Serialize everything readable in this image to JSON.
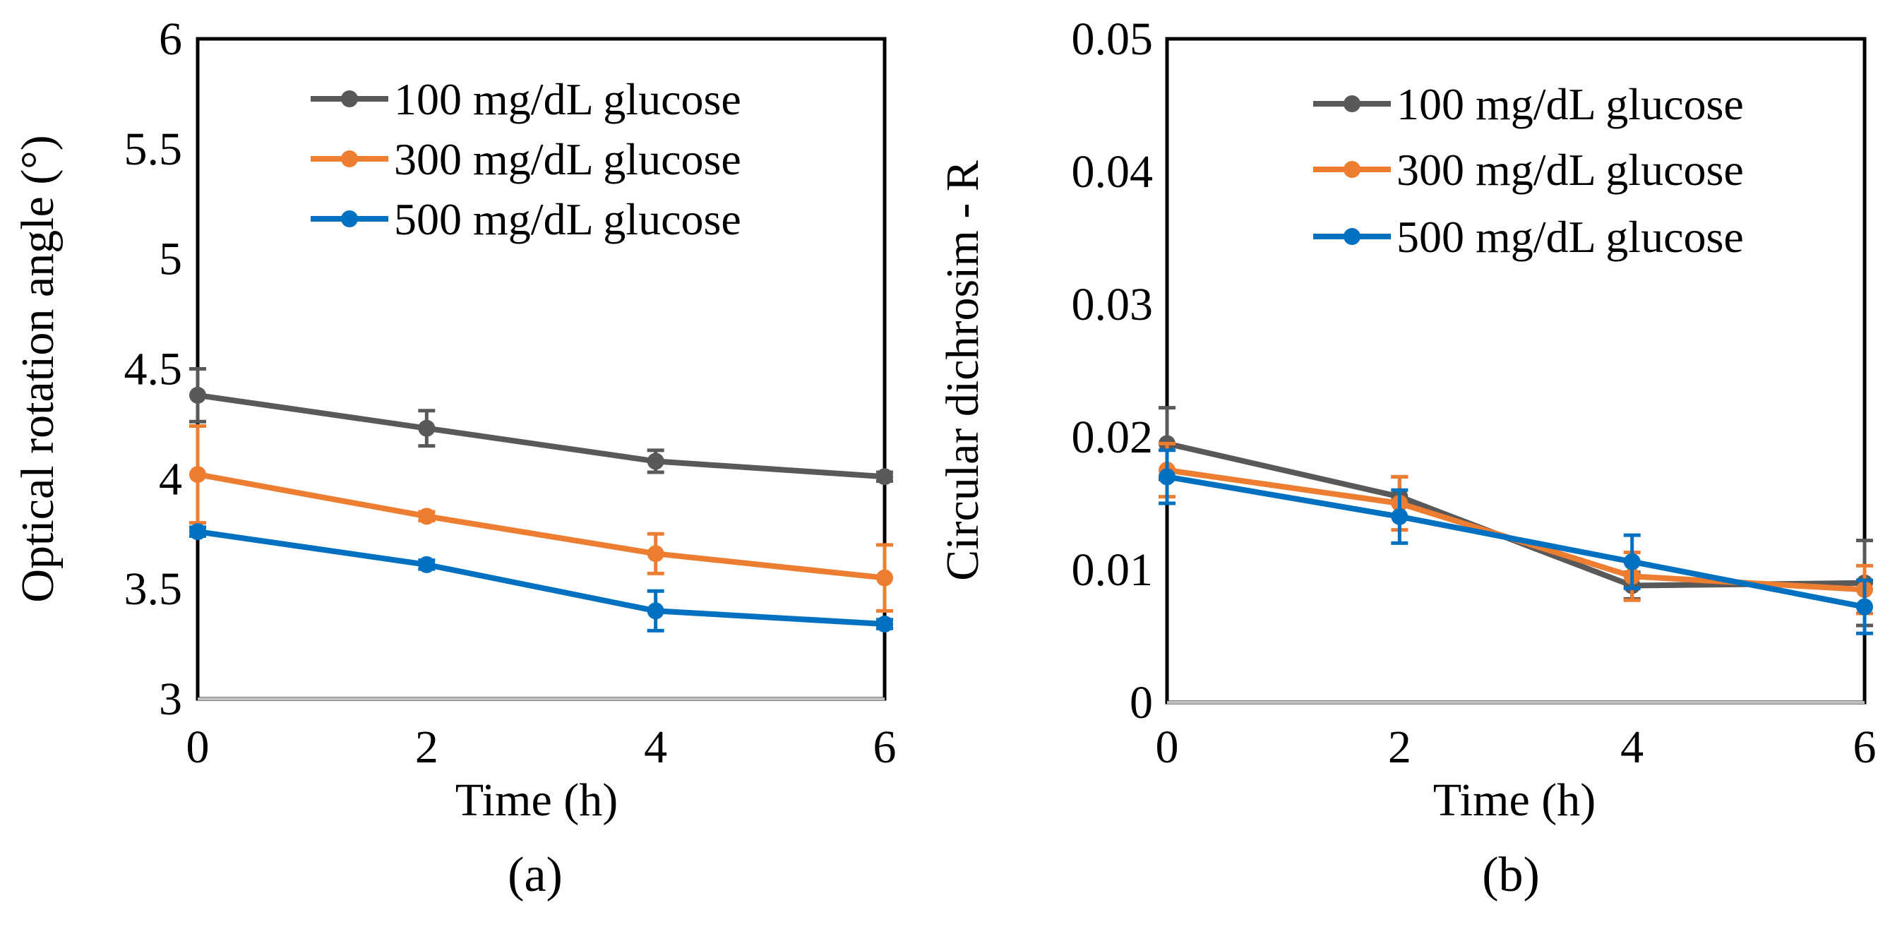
{
  "chart_data": [
    {
      "type": "line",
      "panel_label": "(a)",
      "xlabel": "Time (h)",
      "ylabel": "Optical rotation angle (°)",
      "x": [
        0,
        2,
        4,
        6
      ],
      "x_ticks": [
        "0",
        "2",
        "4",
        "6"
      ],
      "xlim": [
        0,
        6
      ],
      "ylim": [
        3,
        6
      ],
      "y_ticks": [
        "3",
        "3.5",
        "4",
        "4.5",
        "5",
        "5.5",
        "6"
      ],
      "y_tick_values": [
        3,
        3.5,
        4,
        4.5,
        5,
        5.5,
        6
      ],
      "grid": false,
      "legend_position": "top-right",
      "series": [
        {
          "name": "100 mg/dL glucose",
          "color": "#595959",
          "values": [
            4.38,
            4.23,
            4.08,
            4.01
          ],
          "errors": [
            0.12,
            0.08,
            0.05,
            0.02
          ]
        },
        {
          "name": "300 mg/dL glucose",
          "color": "#ED7D31",
          "values": [
            4.02,
            3.83,
            3.66,
            3.55
          ],
          "errors": [
            0.22,
            0.02,
            0.09,
            0.15
          ]
        },
        {
          "name": "500 mg/dL glucose",
          "color": "#0070C0",
          "values": [
            3.76,
            3.61,
            3.4,
            3.34
          ],
          "errors": [
            0.02,
            0.02,
            0.09,
            0.02
          ]
        }
      ]
    },
    {
      "type": "line",
      "panel_label": "(b)",
      "xlabel": "Time (h)",
      "ylabel": "Circular dichrosim - R",
      "x": [
        0,
        2,
        4,
        6
      ],
      "x_ticks": [
        "0",
        "2",
        "4",
        "6"
      ],
      "xlim": [
        0,
        6
      ],
      "ylim": [
        0,
        0.05
      ],
      "y_ticks": [
        "0",
        "0.01",
        "0.02",
        "0.03",
        "0.04",
        "0.05"
      ],
      "y_tick_values": [
        0,
        0.01,
        0.02,
        0.03,
        0.04,
        0.05
      ],
      "grid": false,
      "legend_position": "top-right",
      "series": [
        {
          "name": "100 mg/dL glucose",
          "color": "#595959",
          "values": [
            0.0195,
            0.0155,
            0.0088,
            0.009
          ],
          "errors": [
            0.0027,
            0.0015,
            0.001,
            0.0032
          ]
        },
        {
          "name": "300 mg/dL glucose",
          "color": "#ED7D31",
          "values": [
            0.0175,
            0.015,
            0.0095,
            0.0085
          ],
          "errors": [
            0.002,
            0.002,
            0.0018,
            0.0018
          ]
        },
        {
          "name": "500 mg/dL glucose",
          "color": "#0070C0",
          "values": [
            0.017,
            0.014,
            0.0106,
            0.0072
          ],
          "errors": [
            0.002,
            0.002,
            0.002,
            0.002
          ]
        }
      ]
    }
  ]
}
